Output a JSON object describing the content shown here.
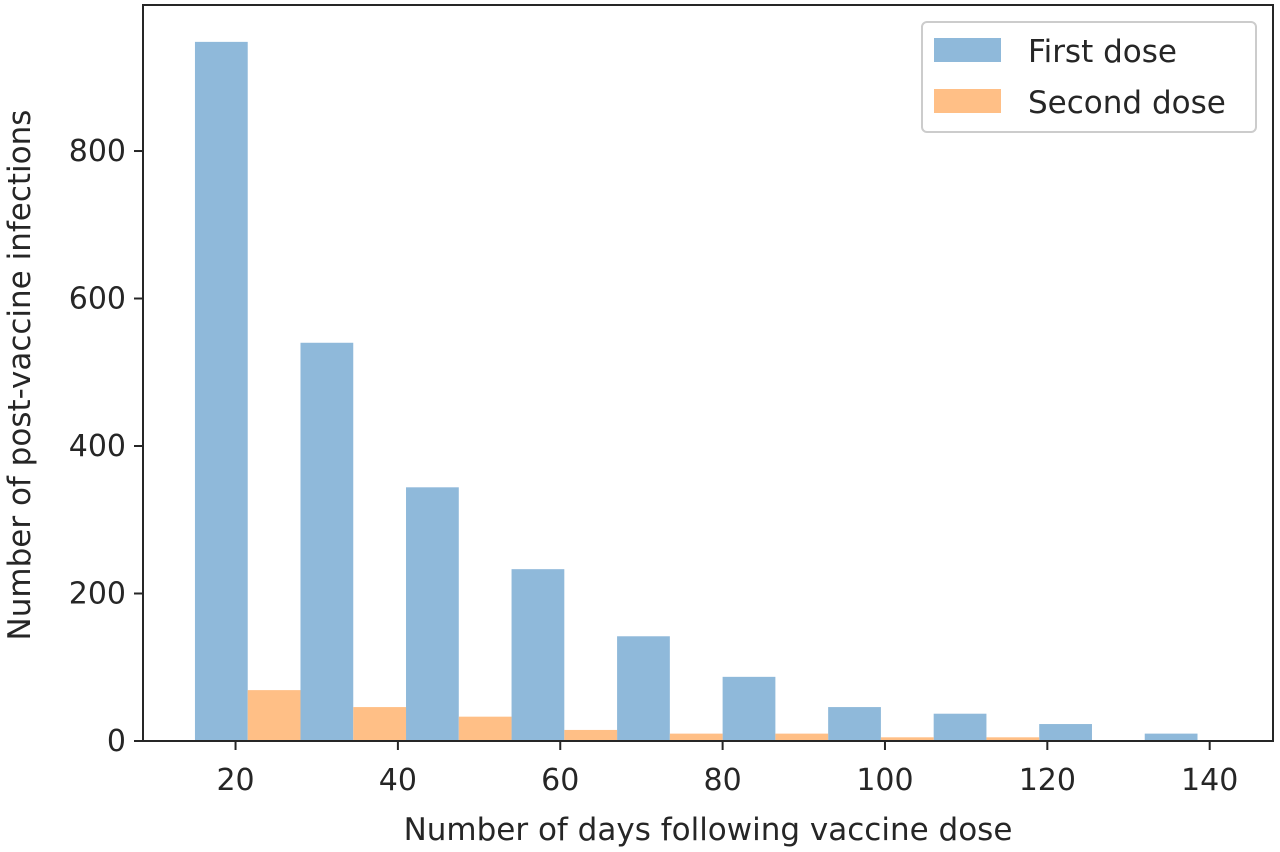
{
  "chart_data": {
    "type": "bar",
    "xlabel": "Number of days following vaccine dose",
    "ylabel": "Number of post-vaccine infections",
    "xlim": [
      8.6,
      147.8
    ],
    "ylim": [
      0,
      998
    ],
    "xticks": [
      20,
      40,
      60,
      80,
      100,
      120,
      140
    ],
    "yticks": [
      0,
      200,
      400,
      600,
      800
    ],
    "bin_edges": [
      15,
      28,
      41,
      54,
      67,
      80,
      93,
      106,
      119,
      132,
      145
    ],
    "legend_position": "top-right",
    "grid": false,
    "series": [
      {
        "name": "First dose",
        "color": "#8fb9da",
        "values": [
          948,
          540,
          344,
          233,
          142,
          87,
          46,
          37,
          23,
          10
        ]
      },
      {
        "name": "Second dose",
        "color": "#ffbf86",
        "values": [
          69,
          46,
          33,
          15,
          10,
          10,
          5,
          5,
          0,
          0
        ]
      }
    ]
  }
}
